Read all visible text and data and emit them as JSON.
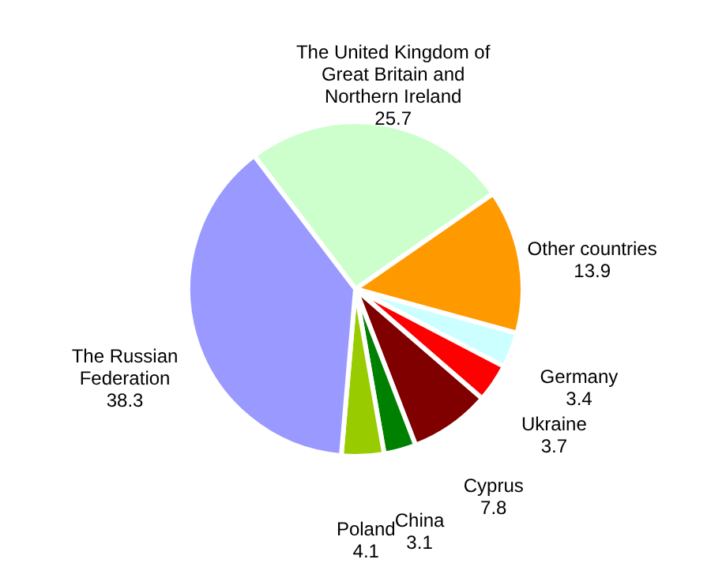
{
  "chart_data": {
    "type": "pie",
    "categories": [
      "The United Kingdom of Great Britain and Northern Ireland",
      "Other countries",
      "Germany",
      "Ukraine",
      "Cyprus",
      "China",
      "Poland",
      "The Russian Federation"
    ],
    "values": [
      25.7,
      13.9,
      3.4,
      3.7,
      7.8,
      3.1,
      4.1,
      38.3
    ],
    "colors": [
      "#ccffcc",
      "#ff9900",
      "#ccffff",
      "#ff0000",
      "#800000",
      "#008000",
      "#99cc00",
      "#9999ff"
    ],
    "data_labels": true,
    "legend": false
  }
}
